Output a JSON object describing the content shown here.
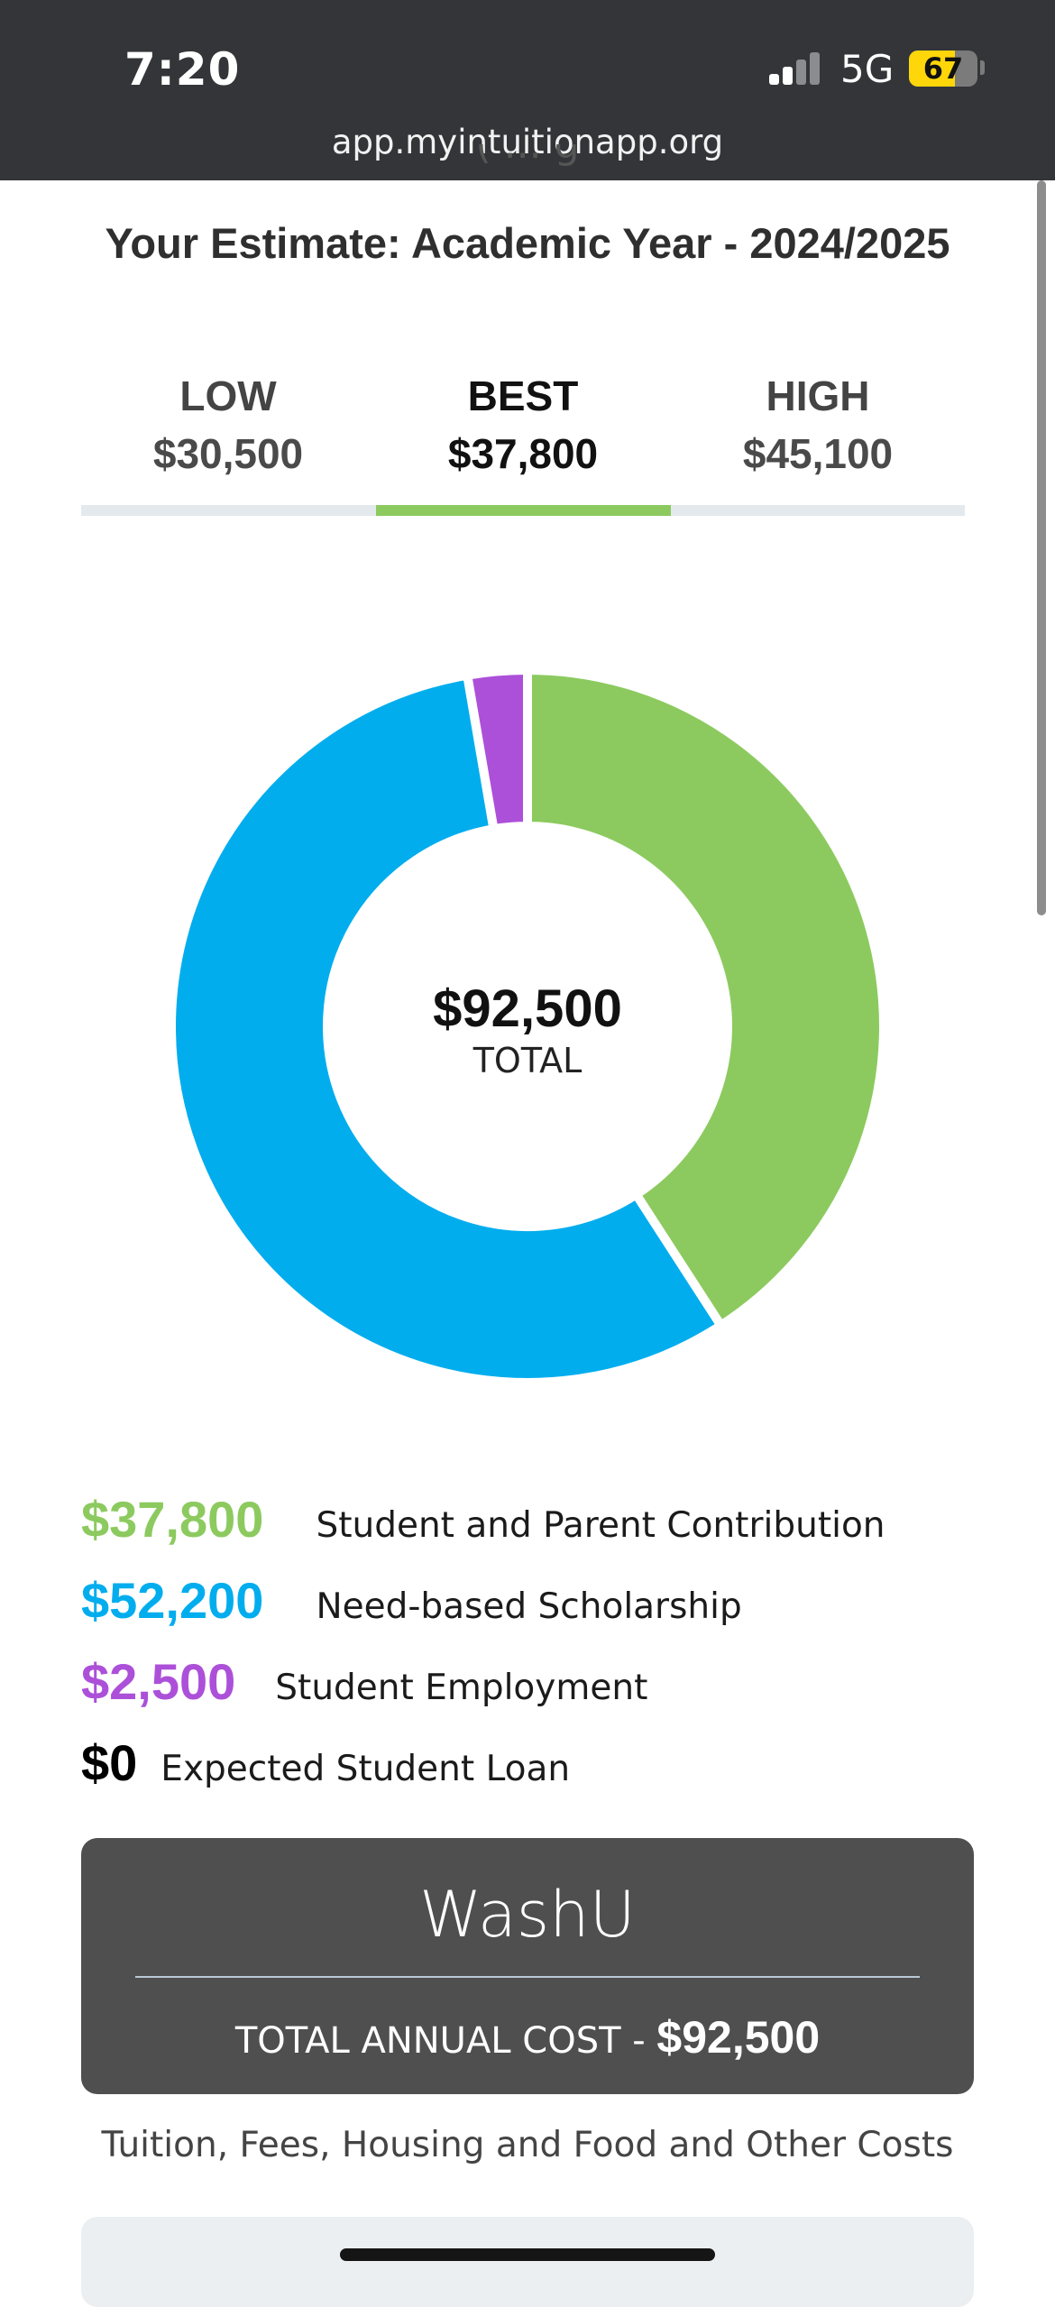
{
  "status_bar": {
    "time": "7:20",
    "network": "5G",
    "battery_level": "67",
    "battery_fraction": 0.67,
    "signal_bars_active": 2,
    "signal_bars_total": 4
  },
  "browser": {
    "url": "app.myintuitionapp.org"
  },
  "page": {
    "partial_heading": "( ... g",
    "estimate_title": "Your Estimate: Academic Year - 2024/2025"
  },
  "tabs": [
    {
      "label": "LOW",
      "value": "$30,500",
      "active": false
    },
    {
      "label": "BEST",
      "value": "$37,800",
      "active": true
    },
    {
      "label": "HIGH",
      "value": "$45,100",
      "active": false
    }
  ],
  "chart_data": {
    "type": "pie",
    "variant": "donut",
    "center_amount": "$92,500",
    "center_label": "TOTAL",
    "slices": [
      {
        "label": "Student and Parent Contribution",
        "value": 37800,
        "color": "#8cca5f"
      },
      {
        "label": "Need-based Scholarship",
        "value": 52200,
        "color": "#02adee"
      },
      {
        "label": "Student Employment",
        "value": 2500,
        "color": "#ac50d9"
      },
      {
        "label": "Expected Student Loan",
        "value": 0,
        "color": "#000000"
      }
    ]
  },
  "legend": [
    {
      "amount": "$37,800",
      "label": "Student and Parent Contribution",
      "color": "#8cca5f"
    },
    {
      "amount": "$52,200",
      "label": "Need-based Scholarship",
      "color": "#02adee"
    },
    {
      "amount": "$2,500",
      "label": "Student Employment",
      "color": "#ac50d9"
    },
    {
      "amount": "$0",
      "label": "Expected Student Loan",
      "color": "#000000"
    }
  ],
  "cost_card": {
    "school": "WashU",
    "cost_label": "TOTAL ANNUAL COST - ",
    "cost_amount": "$92,500"
  },
  "footnote": "Tuition, Fees, Housing and Food and Other Costs"
}
